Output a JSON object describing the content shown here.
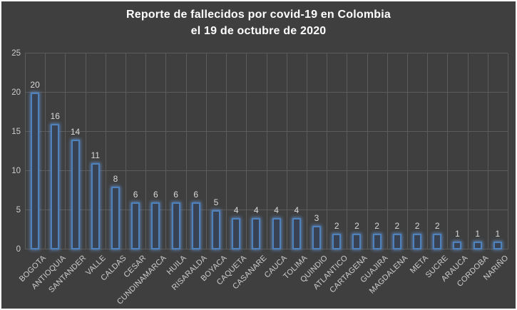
{
  "title": {
    "line1": "Reporte de fallecidos por covid-19 en Colombia",
    "line2": "el 19 de octubre de 2020"
  },
  "colors": {
    "background": "#3F3F3F",
    "frame_border": "#FBFBFB",
    "title_text": "#FFFFFF",
    "gridline": "#5C5C5C",
    "tick_text": "#CDCDCD",
    "data_label_text": "#D9D9D9",
    "bar_border": "#4F81BD",
    "bar_fill": "#394252",
    "bar_glow": "rgba(99,150,214,0.75)"
  },
  "chart_data": {
    "type": "bar",
    "title": "Reporte de fallecidos por covid-19 en Colombia el 19 de octubre de 2020",
    "categories": [
      "BOGOTA",
      "ANTIOQUIA",
      "SANTANDER",
      "VALLE",
      "CALDAS",
      "CESAR",
      "CUNDINAMARCA",
      "HUILA",
      "RISARALDA",
      "BOYACA",
      "CAQUETA",
      "CASANARE",
      "CAUCA",
      "TOLIMA",
      "QUINDIO",
      "ATLANTICO",
      "CARTAGENA",
      "GUAJIRA",
      "MAGDALENA",
      "META",
      "SUCRE",
      "ARAUCA",
      "CORDOBA",
      "NARIÑO"
    ],
    "values": [
      20,
      16,
      14,
      11,
      8,
      6,
      6,
      6,
      6,
      5,
      4,
      4,
      4,
      4,
      3,
      2,
      2,
      2,
      2,
      2,
      2,
      1,
      1,
      1
    ],
    "xlabel": "",
    "ylabel": "",
    "ylim": [
      0,
      25
    ],
    "yticks": [
      0,
      5,
      10,
      15,
      20,
      25
    ],
    "grid": true,
    "legend": "none",
    "data_labels": true
  }
}
